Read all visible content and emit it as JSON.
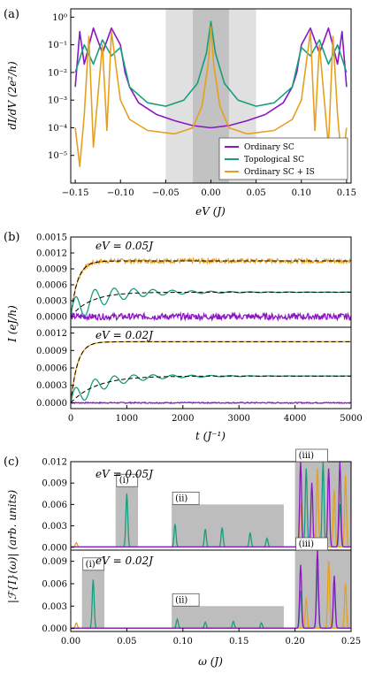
{
  "chart_data": [
    {
      "panel": "(a)",
      "type": "line",
      "xlabel": "eV (J)",
      "ylabel": "dI/dV (2e²/h)",
      "xlim": [
        -0.155,
        0.155
      ],
      "ylim_log10": [
        -6,
        0.3
      ],
      "yscale": "log",
      "x_ticks": [
        "−0.15",
        "−0.10",
        "−0.05",
        "0.00",
        "0.05",
        "0.10",
        "0.15"
      ],
      "y_ticks": [
        "10⁰",
        "10⁻¹",
        "10⁻²",
        "10⁻³",
        "10⁻⁴",
        "10⁻⁵"
      ],
      "shaded_bands": [
        {
          "from": -0.05,
          "to": 0.05,
          "color": "#e0e0e0"
        },
        {
          "from": -0.02,
          "to": 0.02,
          "color": "#c2c2c2"
        }
      ],
      "legend_position": "bottom-right",
      "series": [
        {
          "name": "Ordinary SC",
          "color": "#8a17c2",
          "x": [
            -0.15,
            -0.145,
            -0.14,
            -0.13,
            -0.12,
            -0.11,
            -0.1,
            -0.095,
            -0.09,
            -0.08,
            -0.06,
            -0.04,
            -0.02,
            0,
            0.02,
            0.04,
            0.06,
            0.08,
            0.09,
            0.095,
            0.1,
            0.11,
            0.12,
            0.13,
            0.14,
            0.145,
            0.15
          ],
          "y": [
            0.003,
            0.3,
            0.02,
            0.4,
            0.05,
            0.4,
            0.1,
            0.01,
            0.003,
            0.0008,
            0.0003,
            0.00018,
            0.00012,
            0.0001,
            0.00012,
            0.00018,
            0.0003,
            0.0008,
            0.003,
            0.01,
            0.1,
            0.4,
            0.05,
            0.4,
            0.02,
            0.3,
            0.003
          ]
        },
        {
          "name": "Topological SC",
          "color": "#159e7d",
          "x": [
            -0.15,
            -0.14,
            -0.13,
            -0.12,
            -0.11,
            -0.1,
            -0.09,
            -0.07,
            -0.05,
            -0.03,
            -0.015,
            -0.005,
            0,
            0.005,
            0.015,
            0.03,
            0.05,
            0.07,
            0.09,
            0.1,
            0.11,
            0.12,
            0.13,
            0.14,
            0.15
          ],
          "y": [
            0.01,
            0.1,
            0.02,
            0.15,
            0.04,
            0.08,
            0.003,
            0.0008,
            0.0006,
            0.001,
            0.004,
            0.05,
            0.7,
            0.05,
            0.004,
            0.001,
            0.0006,
            0.0008,
            0.003,
            0.08,
            0.04,
            0.15,
            0.02,
            0.1,
            0.01
          ]
        },
        {
          "name": "Ordinary SC + IS",
          "color": "#e6a01e",
          "x": [
            -0.15,
            -0.145,
            -0.14,
            -0.135,
            -0.13,
            -0.12,
            -0.115,
            -0.11,
            -0.1,
            -0.09,
            -0.07,
            -0.04,
            -0.02,
            -0.01,
            -0.003,
            0,
            0.003,
            0.01,
            0.02,
            0.04,
            0.07,
            0.09,
            0.1,
            0.11,
            0.115,
            0.12,
            0.13,
            0.135,
            0.14,
            0.145,
            0.15
          ],
          "y": [
            0.0001,
            4e-06,
            0.0003,
            0.2,
            2e-05,
            0.1,
            8e-05,
            0.3,
            0.001,
            0.0002,
            8e-05,
            6e-05,
            0.0001,
            0.0006,
            0.02,
            0.45,
            0.02,
            0.0006,
            0.0001,
            6e-05,
            8e-05,
            0.0002,
            0.001,
            0.3,
            8e-05,
            0.1,
            2e-05,
            0.2,
            0.0003,
            4e-06,
            0.0001
          ]
        }
      ]
    },
    {
      "panel": "(b)",
      "type": "line",
      "xlabel": "t (J⁻¹)",
      "ylabel": "I (eJ/h)",
      "xlim": [
        0,
        5000
      ],
      "x_ticks": [
        "0",
        "1000",
        "2000",
        "3000",
        "4000",
        "5000"
      ],
      "upper_y_ticks": [
        "0.0015",
        "0.0012",
        "0.0009",
        "0.0006",
        "0.0003",
        "0.0000"
      ],
      "lower_y_ticks": [
        "0.0012",
        "0.0009",
        "0.0006",
        "0.0003",
        "0.0000"
      ],
      "subpanels": [
        {
          "annotation": "eV = 0.05J",
          "ylim": [
            -0.0002,
            0.0015
          ],
          "series": [
            {
              "color": "#e6a01e",
              "steady": 0.00105,
              "rise_time": 120,
              "noise": 4e-05
            },
            {
              "color": "#159e7d",
              "steady": 0.00046,
              "rise_time": 350,
              "oscillation": 0.0003
            },
            {
              "color": "#8a17c2",
              "steady": 0.0,
              "noise": 6e-05
            }
          ]
        },
        {
          "annotation": "eV = 0.02J",
          "ylim": [
            -0.0001,
            0.0013
          ],
          "series": [
            {
              "color": "#e6a01e",
              "steady": 0.00105,
              "rise_time": 120
            },
            {
              "color": "#159e7d",
              "steady": 0.00046,
              "rise_time": 450,
              "oscillation": 0.0002
            },
            {
              "color": "#8a17c2",
              "steady": 0.0,
              "noise": 1e-05
            }
          ]
        }
      ]
    },
    {
      "panel": "(c)",
      "type": "line",
      "xlabel": "ω (J)",
      "ylabel": "|ℱ{I}(ω)| (arb. units)",
      "xlim": [
        0,
        0.25
      ],
      "x_ticks": [
        "0.00",
        "0.05",
        "0.10",
        "0.15",
        "0.20",
        "0.25"
      ],
      "upper_y_ticks": [
        "0.012",
        "0.009",
        "0.006",
        "0.003",
        "0.000"
      ],
      "lower_y_ticks": [
        "0.009",
        "0.006",
        "0.003",
        "0.000"
      ],
      "subpanels": [
        {
          "annotation": "eV = 0.05J",
          "ylim": [
            -0.0004,
            0.012
          ],
          "boxes": [
            {
              "label": "(i)",
              "x": [
                0.04,
                0.06
              ],
              "top": 0.0085
            },
            {
              "label": "(ii)",
              "x": [
                0.09,
                0.19
              ],
              "top": 0.006
            },
            {
              "label": "(iii)",
              "x": [
                0.2,
                0.25
              ],
              "top": 0.012
            }
          ],
          "series": [
            {
              "color": "#159e7d",
              "peaks": [
                [
                  0.05,
                  0.0075
                ],
                [
                  0.093,
                  0.0032
                ],
                [
                  0.12,
                  0.0025
                ],
                [
                  0.135,
                  0.0027
                ],
                [
                  0.16,
                  0.002
                ],
                [
                  0.175,
                  0.0012
                ],
                [
                  0.21,
                  0.011
                ],
                [
                  0.225,
                  0.012
                ],
                [
                  0.24,
                  0.006
                ]
              ]
            },
            {
              "color": "#e6a01e",
              "peaks": [
                [
                  0.005,
                  0.0006
                ],
                [
                  0.205,
                  0.006
                ],
                [
                  0.22,
                  0.011
                ],
                [
                  0.235,
                  0.008
                ],
                [
                  0.245,
                  0.01
                ]
              ]
            },
            {
              "color": "#8a17c2",
              "peaks": [
                [
                  0.205,
                  0.012
                ],
                [
                  0.215,
                  0.009
                ],
                [
                  0.23,
                  0.011
                ],
                [
                  0.24,
                  0.012
                ]
              ]
            }
          ]
        },
        {
          "annotation": "eV = 0.02J",
          "ylim": [
            -0.0004,
            0.0105
          ],
          "boxes": [
            {
              "label": "(i)",
              "x": [
                0.01,
                0.03
              ],
              "top": 0.0078
            },
            {
              "label": "(ii)",
              "x": [
                0.09,
                0.19
              ],
              "top": 0.003
            },
            {
              "label": "(iii)",
              "x": [
                0.2,
                0.25
              ],
              "top": 0.0105
            }
          ],
          "series": [
            {
              "color": "#159e7d",
              "peaks": [
                [
                  0.02,
                  0.0065
                ],
                [
                  0.095,
                  0.0012
                ],
                [
                  0.12,
                  0.0008
                ],
                [
                  0.145,
                  0.0009
                ],
                [
                  0.17,
                  0.0007
                ],
                [
                  0.205,
                  0.005
                ],
                [
                  0.22,
                  0.008
                ],
                [
                  0.235,
                  0.006
                ]
              ]
            },
            {
              "color": "#e6a01e",
              "peaks": [
                [
                  0.005,
                  0.0007
                ],
                [
                  0.21,
                  0.004
                ],
                [
                  0.23,
                  0.009
                ],
                [
                  0.245,
                  0.006
                ]
              ]
            },
            {
              "color": "#8a17c2",
              "peaks": [
                [
                  0.205,
                  0.0085
                ],
                [
                  0.22,
                  0.0105
                ],
                [
                  0.235,
                  0.007
                ]
              ]
            }
          ]
        }
      ]
    }
  ],
  "panel_labels": [
    "(a)",
    "(b)",
    "(c)"
  ],
  "labels": {
    "a_x": "eV (J)",
    "a_y": "dI/dV (2e²/h)",
    "b_x": "t (J⁻¹)",
    "b_y": "I (eJ/h)",
    "c_x": "ω (J)",
    "c_y": "|ℱ{I}(ω)| (arb. units)",
    "ev05": "eV = 0.05J",
    "ev02": "eV = 0.02J",
    "leg1": "Ordinary SC",
    "leg2": "Topological SC",
    "leg3": "Ordinary SC + IS"
  },
  "colors": {
    "purple": "#8a17c2",
    "green": "#159e7d",
    "orange": "#e6a01e",
    "band_light": "#e0e0e0",
    "band_dark": "#c2c2c2",
    "box_gray": "#bdbdbd"
  }
}
